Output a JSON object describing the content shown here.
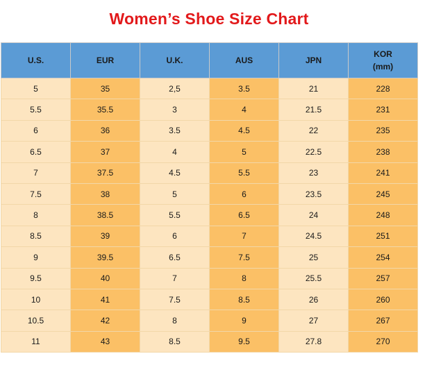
{
  "title": "Women’s Shoe Size Chart",
  "columns": [
    {
      "line1": "U.S.",
      "line2": ""
    },
    {
      "line1": "EUR",
      "line2": ""
    },
    {
      "line1": "U.K.",
      "line2": ""
    },
    {
      "line1": "AUS",
      "line2": ""
    },
    {
      "line1": "JPN",
      "line2": ""
    },
    {
      "line1": "KOR",
      "line2": "(mm)"
    }
  ],
  "rows": [
    [
      "5",
      "35",
      "2,5",
      "3.5",
      "21",
      "228"
    ],
    [
      "5.5",
      "35.5",
      "3",
      "4",
      "21.5",
      "231"
    ],
    [
      "6",
      "36",
      "3.5",
      "4.5",
      "22",
      "235"
    ],
    [
      "6.5",
      "37",
      "4",
      "5",
      "22.5",
      "238"
    ],
    [
      "7",
      "37.5",
      "4.5",
      "5.5",
      "23",
      "241"
    ],
    [
      "7.5",
      "38",
      "5",
      "6",
      "23.5",
      "245"
    ],
    [
      "8",
      "38.5",
      "5.5",
      "6.5",
      "24",
      "248"
    ],
    [
      "8.5",
      "39",
      "6",
      "7",
      "24.5",
      "251"
    ],
    [
      "9",
      "39.5",
      "6.5",
      "7.5",
      "25",
      "254"
    ],
    [
      "9.5",
      "40",
      "7",
      "8",
      "25.5",
      "257"
    ],
    [
      "10",
      "41",
      "7.5",
      "8.5",
      "26",
      "260"
    ],
    [
      "10.5",
      "42",
      "8",
      "9",
      "27",
      "267"
    ],
    [
      "11",
      "43",
      "8.5",
      "9.5",
      "27.8",
      "270"
    ]
  ],
  "colors": {
    "title": "#e2191b",
    "header": "#5b9bd5",
    "cell_light": "#fde5c0",
    "cell_dark": "#fbc066"
  }
}
